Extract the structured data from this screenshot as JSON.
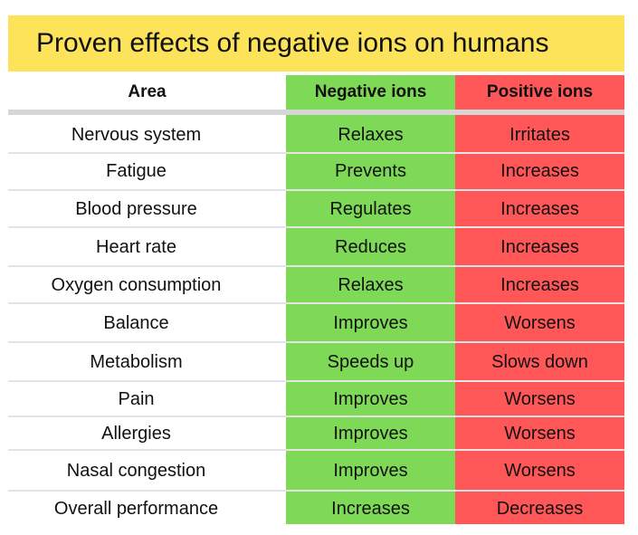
{
  "title": "Proven effects of negative ions on humans",
  "header": {
    "area": "Area",
    "negative": "Negative ions",
    "positive": "Positive ions"
  },
  "colors": {
    "title_background": "#fce35a",
    "negative_column": "#7ed957",
    "positive_column": "#ff5757"
  },
  "rows": [
    {
      "area": "Nervous system",
      "negative": "Relaxes",
      "positive": "Irritates"
    },
    {
      "area": "Fatigue",
      "negative": "Prevents",
      "positive": "Increases"
    },
    {
      "area": "Blood pressure",
      "negative": "Regulates",
      "positive": "Increases"
    },
    {
      "area": "Heart rate",
      "negative": "Reduces",
      "positive": "Increases"
    },
    {
      "area": "Oxygen consumption",
      "negative": "Relaxes",
      "positive": "Increases"
    },
    {
      "area": "Balance",
      "negative": "Improves",
      "positive": "Worsens"
    },
    {
      "area": "Metabolism",
      "negative": "Speeds up",
      "positive": "Slows down"
    },
    {
      "area": "Pain",
      "negative": "Improves",
      "positive": "Worsens"
    },
    {
      "area": "Allergies",
      "negative": "Improves",
      "positive": "Worsens"
    },
    {
      "area": "Nasal congestion",
      "negative": "Improves",
      "positive": "Worsens"
    },
    {
      "area": "Overall performance",
      "negative": "Increases",
      "positive": "Decreases"
    }
  ]
}
